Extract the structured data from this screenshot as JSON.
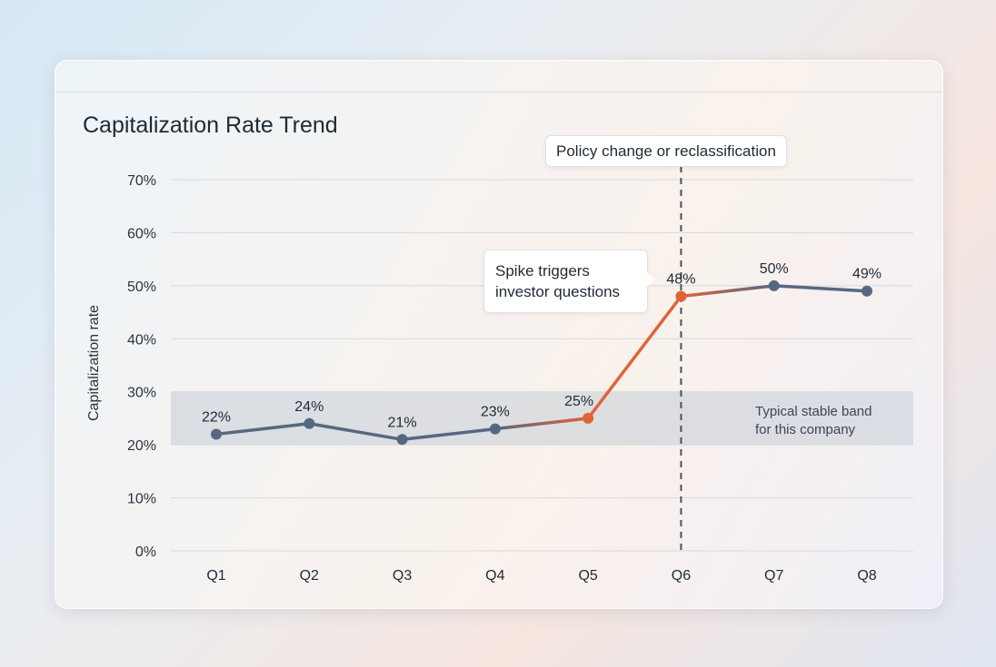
{
  "chart_data": {
    "type": "line",
    "title": "Capitalization Rate Trend",
    "ylabel": "Capitalization rate",
    "xlabel": "",
    "categories": [
      "Q1",
      "Q2",
      "Q3",
      "Q4",
      "Q5",
      "Q6",
      "Q7",
      "Q8"
    ],
    "values": [
      22,
      24,
      21,
      23,
      25,
      48,
      50,
      49
    ],
    "data_labels": [
      "22%",
      "24%",
      "21%",
      "23%",
      "25%",
      "48%",
      "50%",
      "49%"
    ],
    "ylim": [
      0,
      70
    ],
    "yticks": [
      0,
      10,
      20,
      30,
      40,
      50,
      60,
      70
    ],
    "ytick_labels": [
      "0%",
      "10%",
      "20%",
      "30%",
      "40%",
      "50%",
      "60%",
      "70%"
    ],
    "grid": true,
    "band": {
      "from": 20,
      "to": 30,
      "label_line1": "Typical stable band",
      "label_line2": "for this company"
    },
    "vline": {
      "at": "Q6",
      "label": "Policy change or reclassification"
    },
    "annotation": {
      "line1": "Spike triggers",
      "line2": "investor questions"
    },
    "highlight_points": [
      "Q5",
      "Q6"
    ],
    "colors": {
      "base": "#566881",
      "highlight": "#e0643a",
      "band": "#c9d0d8",
      "grid": "#d5d9de"
    }
  }
}
